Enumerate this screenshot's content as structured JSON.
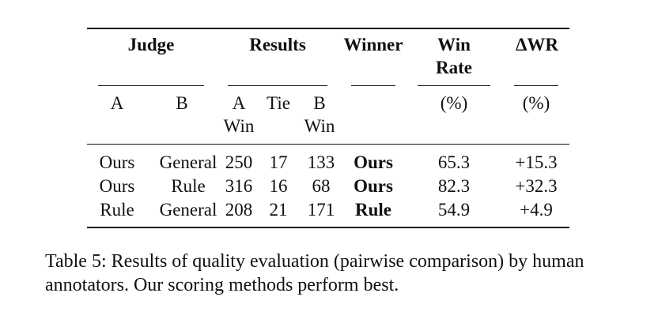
{
  "table": {
    "header_groups": {
      "judge": "Judge",
      "results": "Results",
      "winner": "Winner",
      "win_rate_line1": "Win",
      "win_rate_line2": "Rate",
      "delta_wr": "ΔWR"
    },
    "subheaders": {
      "a": "A",
      "b": "B",
      "a_win_line1": "A",
      "a_win_line2": "Win",
      "tie": "Tie",
      "b_win_line1": "B",
      "b_win_line2": "Win",
      "win_rate_unit": "(%)",
      "delta_unit": "(%)"
    },
    "rows": [
      {
        "a": "Ours",
        "b": "General",
        "a_win": "250",
        "tie": "17",
        "b_win": "133",
        "winner": "Ours",
        "win_rate": "65.3",
        "delta": "+15.3"
      },
      {
        "a": "Ours",
        "b": "Rule",
        "a_win": "316",
        "tie": "16",
        "b_win": "68",
        "winner": "Ours",
        "win_rate": "82.3",
        "delta": "+32.3"
      },
      {
        "a": "Rule",
        "b": "General",
        "a_win": "208",
        "tie": "21",
        "b_win": "171",
        "winner": "Rule",
        "win_rate": "54.9",
        "delta": "+4.9"
      }
    ]
  },
  "caption": {
    "label": "Table 5:",
    "text": "Results of quality evaluation (pairwise comparison) by human annotators. Our scoring methods perform best."
  }
}
